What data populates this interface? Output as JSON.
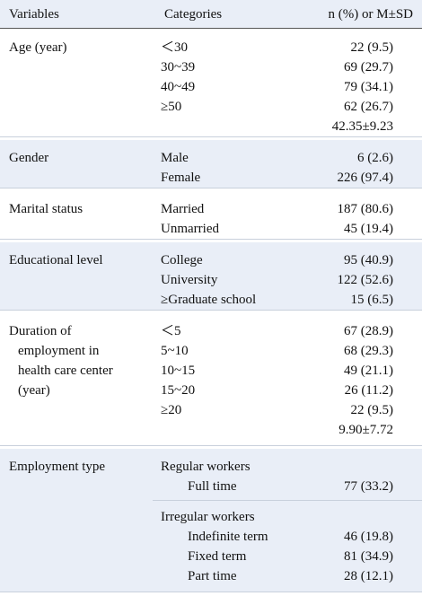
{
  "header": {
    "cells": [
      "Variables",
      "Categories",
      "n (%) or M±SD"
    ]
  },
  "rows": [
    {
      "variable": [
        "Age (year)"
      ],
      "items": [
        {
          "category": "＜30",
          "value": "22 (9.5)"
        },
        {
          "category": "30~39",
          "value": "69 (29.7)"
        },
        {
          "category": "40~49",
          "value": "79 (34.1)"
        },
        {
          "category": "≥50",
          "value": "62 (26.7)"
        },
        {
          "value": "42.35±9.23"
        }
      ]
    },
    {
      "variable": [
        "Gender"
      ],
      "items": [
        {
          "category": "Male",
          "value": "6 (2.6)"
        },
        {
          "category": "Female",
          "value": "226 (97.4)"
        }
      ]
    },
    {
      "variable": [
        "Marital status"
      ],
      "items": [
        {
          "category": "Married",
          "value": "187 (80.6)"
        },
        {
          "category": "Unmarried",
          "value": "45 (19.4)"
        }
      ]
    },
    {
      "variable": [
        "Educational level"
      ],
      "items": [
        {
          "category": "College",
          "value": "95 (40.9)"
        },
        {
          "category": "University",
          "value": "122 (52.6)"
        },
        {
          "category": "≥Graduate school",
          "value": "15 (6.5)"
        }
      ]
    },
    {
      "variable": [
        "Duration of",
        "employment in",
        "health care center",
        "(year)"
      ],
      "items": [
        {
          "category": "＜5",
          "value": "67 (28.9)"
        },
        {
          "category": "5~10",
          "value": "68 (29.3)"
        },
        {
          "category": "10~15",
          "value": "49 (21.1)"
        },
        {
          "category": "15~20",
          "value": "26 (11.2)"
        },
        {
          "category": "≥20",
          "value": "22 (9.5)"
        },
        {
          "value": "9.90±7.72"
        }
      ]
    },
    {
      "variable": [
        "Employment type"
      ],
      "groups": [
        {
          "label": "Regular workers",
          "items": [
            {
              "category": "Full time",
              "value": "77 (33.2)"
            }
          ]
        },
        {
          "label": "Irregular workers",
          "items": [
            {
              "category": "Indefinite term",
              "value": "46 (19.8)"
            },
            {
              "category": "Fixed term",
              "value": "81 (34.9)"
            },
            {
              "category": "Part time",
              "value": "28 (12.1)"
            }
          ]
        }
      ]
    }
  ]
}
